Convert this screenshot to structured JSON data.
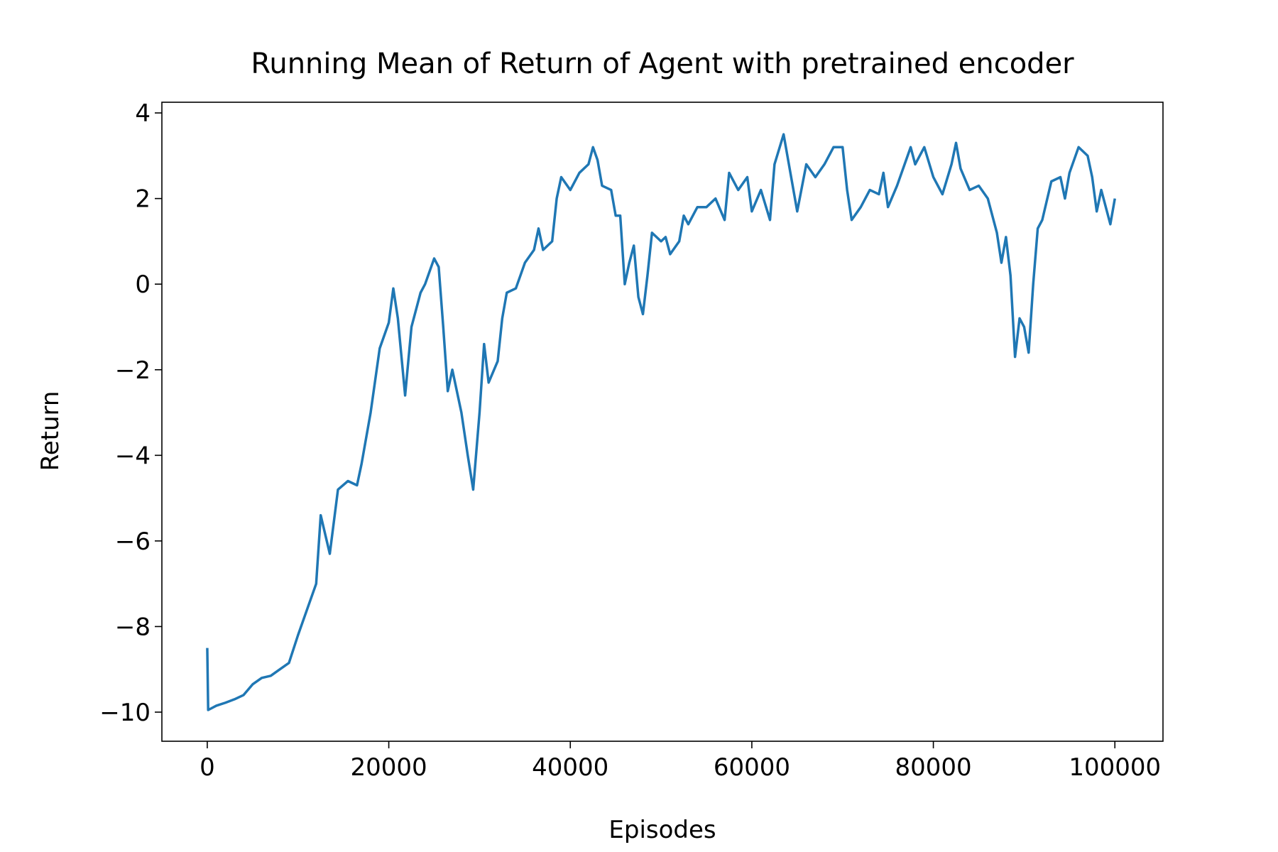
{
  "chart_data": {
    "type": "line",
    "title": "Running Mean of Return of Agent with pretrained encoder",
    "xlabel": "Episodes",
    "ylabel": "Return",
    "x": [
      0,
      100,
      1000,
      2000,
      3000,
      4000,
      5000,
      6000,
      7000,
      8000,
      9000,
      10000,
      11000,
      12000,
      12500,
      13500,
      14400,
      15500,
      16500,
      17000,
      18000,
      19000,
      20000,
      20500,
      21000,
      21800,
      22500,
      23500,
      24000,
      25000,
      25500,
      26000,
      26500,
      27000,
      27500,
      28000,
      28700,
      29300,
      30000,
      30500,
      31000,
      32000,
      32500,
      33000,
      34000,
      35000,
      36000,
      36500,
      37000,
      38000,
      38500,
      39000,
      40000,
      41000,
      42000,
      42500,
      43000,
      43500,
      44500,
      45000,
      45500,
      46000,
      46500,
      47000,
      47500,
      48000,
      48500,
      49000,
      50000,
      50500,
      51000,
      52000,
      52500,
      53000,
      54000,
      55000,
      56000,
      57000,
      57500,
      58500,
      59500,
      60000,
      61000,
      62000,
      62500,
      63500,
      64000,
      65000,
      66000,
      67000,
      68000,
      69000,
      70000,
      70500,
      71000,
      72000,
      73000,
      74000,
      74500,
      75000,
      76000,
      77000,
      77500,
      78000,
      79000,
      80000,
      81000,
      82000,
      82500,
      83000,
      84000,
      85000,
      86000,
      87000,
      87500,
      88000,
      88500,
      89000,
      89500,
      90000,
      90500,
      91000,
      91500,
      92000,
      93000,
      94000,
      94500,
      95000,
      96000,
      97000,
      97500,
      98000,
      98500,
      99500,
      100000
    ],
    "series": [
      {
        "color": "#1f77b4",
        "values": [
          -8.5,
          -9.95,
          -9.85,
          -9.78,
          -9.7,
          -9.6,
          -9.35,
          -9.2,
          -9.15,
          -9.0,
          -8.85,
          -8.2,
          -7.6,
          -7.0,
          -5.4,
          -6.3,
          -4.8,
          -4.6,
          -4.7,
          -4.2,
          -3.0,
          -1.5,
          -0.9,
          -0.1,
          -0.8,
          -2.6,
          -1.0,
          -0.2,
          0.0,
          0.6,
          0.4,
          -1.0,
          -2.5,
          -2.0,
          -2.5,
          -3.0,
          -4.0,
          -4.8,
          -3.0,
          -1.4,
          -2.3,
          -1.8,
          -0.8,
          -0.2,
          -0.1,
          0.5,
          0.8,
          1.3,
          0.8,
          1.0,
          2.0,
          2.5,
          2.2,
          2.6,
          2.8,
          3.2,
          2.9,
          2.3,
          2.2,
          1.6,
          1.6,
          0.0,
          0.5,
          0.9,
          -0.3,
          -0.7,
          0.2,
          1.2,
          1.0,
          1.1,
          0.7,
          1.0,
          1.6,
          1.4,
          1.8,
          1.8,
          2.0,
          1.5,
          2.6,
          2.2,
          2.5,
          1.7,
          2.2,
          1.5,
          2.8,
          3.5,
          2.9,
          1.7,
          2.8,
          2.5,
          2.8,
          3.2,
          3.2,
          2.2,
          1.5,
          1.8,
          2.2,
          2.1,
          2.6,
          1.8,
          2.3,
          2.9,
          3.2,
          2.8,
          3.2,
          2.5,
          2.1,
          2.8,
          3.3,
          2.7,
          2.2,
          2.3,
          2.0,
          1.2,
          0.5,
          1.1,
          0.2,
          -1.7,
          -0.8,
          -1.0,
          -1.6,
          0.0,
          1.3,
          1.5,
          2.4,
          2.5,
          2.0,
          2.6,
          3.2,
          3.0,
          2.5,
          1.7,
          2.2,
          1.4,
          2.0
        ]
      }
    ],
    "xlim": [
      -5000,
      105300
    ],
    "ylim": [
      -10.68,
      4.25
    ],
    "xticks": [
      0,
      20000,
      40000,
      60000,
      80000,
      100000
    ],
    "yticks": [
      {
        "value": -10,
        "label": "−10"
      },
      {
        "value": -8,
        "label": "−8"
      },
      {
        "value": -6,
        "label": "−6"
      },
      {
        "value": -4,
        "label": "−4"
      },
      {
        "value": -2,
        "label": "−2"
      },
      0,
      2,
      4
    ]
  }
}
